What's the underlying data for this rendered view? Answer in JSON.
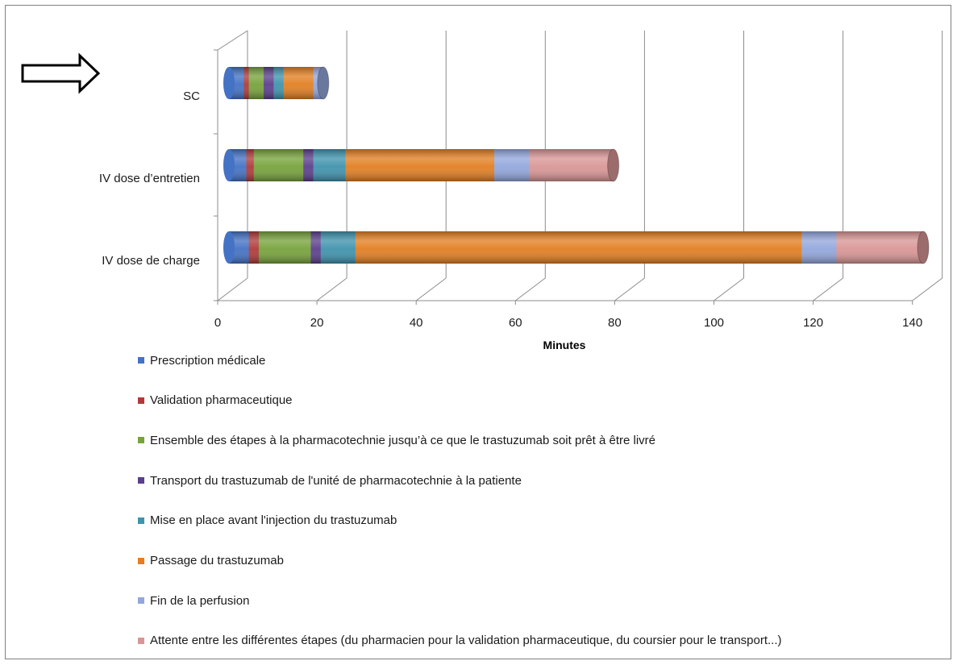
{
  "chart_data": {
    "type": "bar",
    "orientation": "horizontal",
    "stacked": true,
    "style": "3d-cylinder",
    "categories": [
      "SC",
      "IV dose d’entretien",
      "IV dose de charge"
    ],
    "xlabel": "Minutes",
    "xlim": [
      0,
      140
    ],
    "xticks": [
      "0",
      "20",
      "40",
      "60",
      "80",
      "100",
      "120",
      "140"
    ],
    "grid": true,
    "legend_position": "bottom",
    "series": [
      {
        "name": "Prescription médicale",
        "color": "#4472c4",
        "values": [
          3,
          3.5,
          4
        ]
      },
      {
        "name": "Validation pharmaceutique",
        "color": "#b03a3a",
        "values": [
          1,
          1.5,
          2
        ]
      },
      {
        "name": "Ensemble des étapes à la pharmacotechnie jusqu’à ce que le trastuzumab soit prêt à être livré",
        "color": "#77a33c",
        "values": [
          3,
          10,
          10.5
        ]
      },
      {
        "name": "Transport du trastuzumab de l'unité de pharmacotechnie à la patiente",
        "color": "#5b3f8c",
        "values": [
          2,
          2,
          2
        ]
      },
      {
        "name": "Mise en place avant l'injection du trastuzumab",
        "color": "#3f93ad",
        "values": [
          2,
          6.5,
          7
        ]
      },
      {
        "name": "Passage du trastuzumab",
        "color": "#e27f22",
        "values": [
          6,
          30,
          90
        ]
      },
      {
        "name": "Fin de la perfusion",
        "color": "#93a7dc",
        "values": [
          2,
          7,
          7
        ]
      },
      {
        "name": "Attente entre les différentes étapes (du pharmacien pour la validation pharmaceutique, du coursier pour le transport...)",
        "color": "#d99696",
        "values": [
          0,
          17,
          17.5
        ]
      }
    ]
  },
  "decorations": {
    "arrow": {
      "name": "right-arrow-icon",
      "points_to": "SC"
    }
  }
}
